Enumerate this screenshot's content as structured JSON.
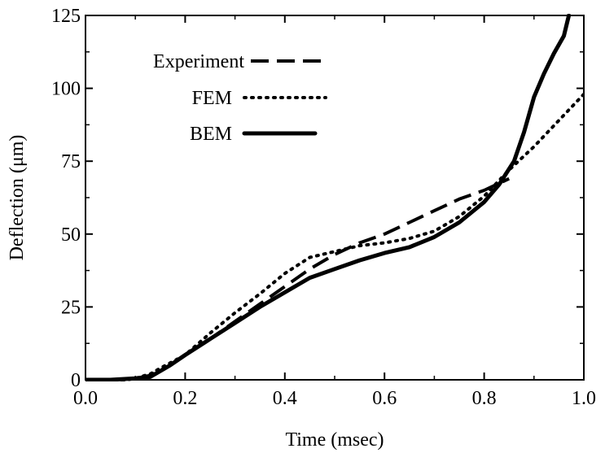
{
  "chart_data": {
    "type": "line",
    "xlabel": "Time (msec)",
    "ylabel": "Deflection (μm)",
    "xlim": [
      0.0,
      1.0
    ],
    "ylim": [
      0,
      125
    ],
    "x_ticks": [
      0.0,
      0.2,
      0.4,
      0.6,
      0.8,
      1.0
    ],
    "x_tick_labels": [
      "0.0",
      "0.2",
      "0.4",
      "0.6",
      "0.8",
      "1.0"
    ],
    "y_ticks": [
      0,
      25,
      50,
      75,
      100,
      125
    ],
    "y_tick_labels": [
      "0",
      "25",
      "50",
      "75",
      "100",
      "125"
    ],
    "grid": false,
    "legend_position": "top-left",
    "series": [
      {
        "name": "Experiment",
        "style": "dashed",
        "color": "#000000",
        "x": [
          0.0,
          0.05,
          0.1,
          0.13,
          0.17,
          0.2,
          0.25,
          0.3,
          0.35,
          0.4,
          0.45,
          0.5,
          0.55,
          0.6,
          0.65,
          0.7,
          0.75,
          0.8,
          0.85
        ],
        "y": [
          0,
          0,
          0.5,
          1.5,
          5,
          8.5,
          14,
          20,
          26,
          32,
          38,
          43,
          47,
          50,
          54,
          58,
          62,
          65,
          69
        ]
      },
      {
        "name": "FEM",
        "style": "dotted",
        "color": "#000000",
        "x": [
          0.0,
          0.05,
          0.1,
          0.13,
          0.15,
          0.2,
          0.25,
          0.3,
          0.35,
          0.4,
          0.45,
          0.5,
          0.55,
          0.6,
          0.65,
          0.7,
          0.75,
          0.8,
          0.85,
          0.9,
          0.95,
          1.0
        ],
        "y": [
          -1,
          -1,
          0.5,
          2,
          4,
          8.5,
          16,
          23,
          29.5,
          36.5,
          42,
          44,
          46,
          47,
          48.5,
          51,
          56,
          63,
          72,
          80,
          89,
          98
        ]
      },
      {
        "name": "BEM",
        "style": "solid",
        "color": "#000000",
        "x": [
          0.0,
          0.05,
          0.1,
          0.13,
          0.17,
          0.2,
          0.25,
          0.3,
          0.35,
          0.4,
          0.45,
          0.5,
          0.55,
          0.6,
          0.65,
          0.7,
          0.75,
          0.8,
          0.83,
          0.86,
          0.88,
          0.9,
          0.92,
          0.94,
          0.96,
          0.97
        ],
        "y": [
          0,
          0,
          0.5,
          1,
          5,
          8.5,
          14,
          19.5,
          25,
          30,
          35,
          38,
          41,
          43.5,
          45.5,
          49,
          54,
          61,
          67,
          75,
          85,
          97,
          105,
          112,
          118,
          125
        ]
      }
    ]
  }
}
